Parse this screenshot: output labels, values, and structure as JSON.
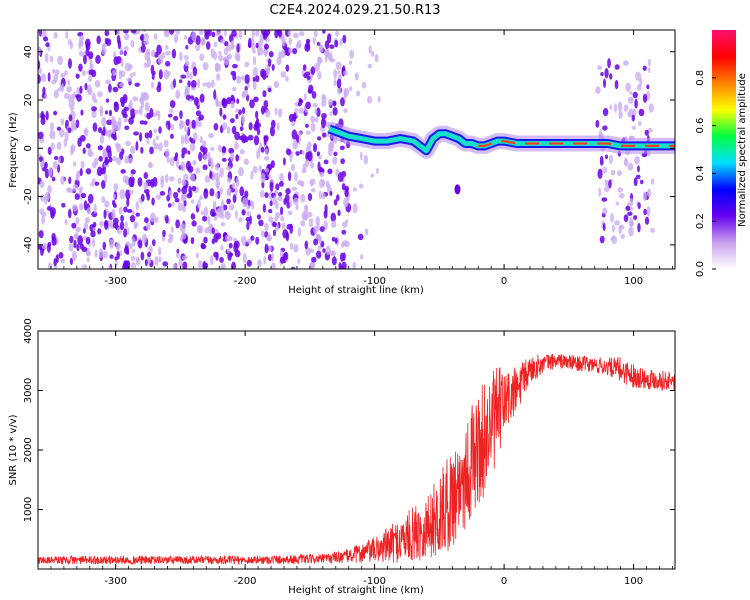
{
  "title": "C2E4.2024.029.21.50.R13",
  "colors": {
    "spectrogram_low": "#c8a8f0",
    "spectrogram_mid": "#6a00e8",
    "snr_line": "#ee2222"
  },
  "chart_data": [
    {
      "type": "heatmap",
      "name": "spectrogram",
      "xlabel": "Height of straight line (km)",
      "ylabel": "Frequency (Hz)",
      "xlim": [
        -360,
        132
      ],
      "ylim": [
        -50,
        49
      ],
      "xticks": [
        -300,
        -200,
        -100,
        0,
        100
      ],
      "yticks": [
        40,
        20,
        0,
        -20,
        -40
      ],
      "xtick_labels": [
        "-300",
        "-200",
        "-100",
        "0",
        "100"
      ],
      "ytick_labels": [
        "40",
        "20",
        "0",
        "-20",
        "-40"
      ],
      "noise_regions": [
        {
          "x": [
            -360,
            -120
          ],
          "freq": [
            -50,
            49
          ],
          "density": "high"
        },
        {
          "x": [
            -120,
            -95
          ],
          "freq": [
            -50,
            49
          ],
          "density": "low"
        },
        {
          "x": [
            72,
            115
          ],
          "freq": [
            -38,
            36
          ],
          "density": "medium"
        }
      ],
      "carrier_trace": {
        "x": [
          -135,
          -120,
          -110,
          -100,
          -90,
          -80,
          -70,
          -65,
          -60,
          -55,
          -50,
          -45,
          -40,
          -35,
          -30,
          -25,
          -20,
          -15,
          -10,
          -5,
          0,
          10,
          20,
          30,
          40,
          50,
          60,
          70,
          80,
          90,
          100,
          110,
          120,
          132
        ],
        "freq": [
          8,
          5,
          4,
          3,
          3,
          4,
          3,
          1,
          -1,
          4,
          6,
          6,
          5,
          4,
          2,
          2,
          1,
          1,
          2,
          3,
          3,
          2,
          2,
          2,
          2,
          2,
          2,
          2,
          2,
          1,
          1,
          1,
          1,
          1
        ]
      },
      "colorbar": {
        "label": "Normalized spectral amplitude",
        "range": [
          0,
          1
        ],
        "ticks": [
          0.0,
          0.2,
          0.4,
          0.6,
          0.8
        ],
        "tick_labels": [
          "0.0",
          "0.2",
          "0.4",
          "0.6",
          "0.8"
        ],
        "colormap": [
          "#ffffff",
          "#c8a0f0",
          "#6600ee",
          "#0000ff",
          "#00e0ff",
          "#00ff40",
          "#ffff00",
          "#ff8000",
          "#ff0000",
          "#ff1070"
        ]
      }
    },
    {
      "type": "line",
      "name": "snr",
      "xlabel": "Height of straight line (km)",
      "ylabel": "SNR (10 * v/v)",
      "xlim": [
        -360,
        132
      ],
      "ylim": [
        0,
        4000
      ],
      "xticks": [
        -300,
        -200,
        -100,
        0,
        100
      ],
      "yticks": [
        1000,
        2000,
        3000,
        4000
      ],
      "xtick_labels": [
        "-300",
        "-200",
        "-100",
        "0",
        "100"
      ],
      "ytick_labels": [
        "1000",
        "2000",
        "3000",
        "4000"
      ],
      "envelope": {
        "x": [
          -360,
          -300,
          -200,
          -140,
          -120,
          -100,
          -80,
          -60,
          -50,
          -40,
          -30,
          -20,
          -15,
          -10,
          -5,
          0,
          10,
          20,
          30,
          40,
          60,
          80,
          90,
          100,
          110,
          132
        ],
        "mean": [
          150,
          150,
          150,
          170,
          220,
          320,
          480,
          700,
          900,
          1200,
          1600,
          2000,
          2200,
          2400,
          2600,
          2800,
          3000,
          3350,
          3450,
          3500,
          3450,
          3400,
          3350,
          3250,
          3200,
          3150
        ],
        "spread": [
          70,
          70,
          70,
          80,
          120,
          220,
          380,
          550,
          700,
          850,
          950,
          1000,
          950,
          900,
          800,
          600,
          400,
          250,
          160,
          130,
          130,
          150,
          220,
          200,
          180,
          160
        ]
      }
    }
  ]
}
